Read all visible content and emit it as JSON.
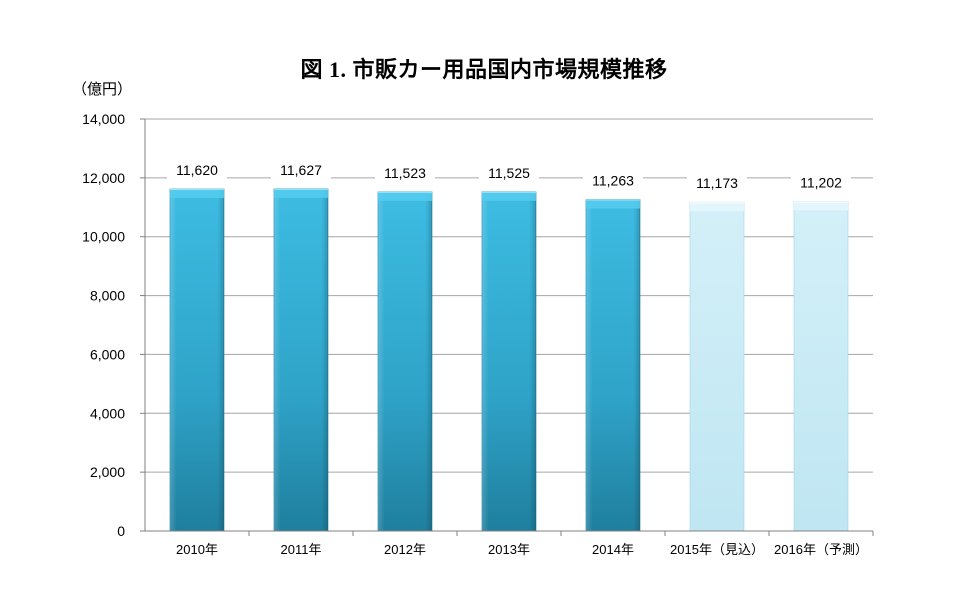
{
  "chart_data": {
    "type": "bar",
    "title": "図 1.  市販カー用品国内市場規模推移",
    "unit_label": "（億円）",
    "categories": [
      "2010年",
      "2011年",
      "2012年",
      "2013年",
      "2014年",
      "2015年（見込）",
      "2016年（予測）"
    ],
    "values": [
      11620,
      11627,
      11523,
      11525,
      11263,
      11173,
      11202
    ],
    "value_labels": [
      "11,620",
      "11,627",
      "11,523",
      "11,525",
      "11,263",
      "11,173",
      "11,202"
    ],
    "estimated": [
      false,
      false,
      false,
      false,
      false,
      true,
      true
    ],
    "ylim": [
      0,
      14000
    ],
    "yticks": [
      0,
      2000,
      4000,
      6000,
      8000,
      10000,
      12000,
      14000
    ],
    "ytick_labels": [
      "0",
      "2,000",
      "4,000",
      "6,000",
      "8,000",
      "10,000",
      "12,000",
      "14,000"
    ],
    "grid": true,
    "colors": {
      "actual": "#2fa8cf",
      "estimate": "#c6eaf5",
      "grid": "#a6a6a6"
    }
  }
}
